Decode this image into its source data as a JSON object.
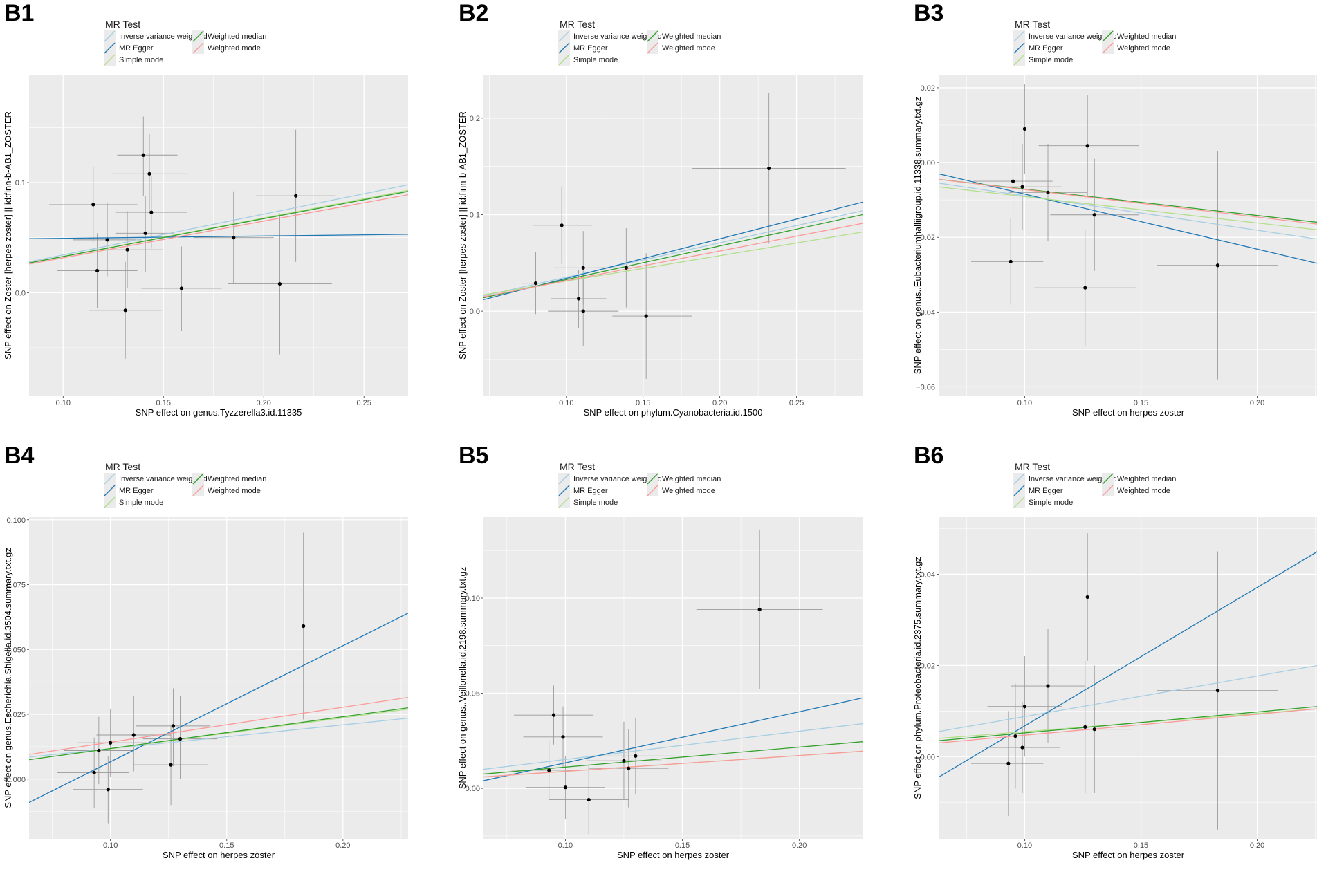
{
  "legend": {
    "title": "MR Test",
    "items": [
      {
        "key": "ivw",
        "label": "Inverse variance weighted",
        "color": "#a6cee3"
      },
      {
        "key": "egger",
        "label": "MR Egger",
        "color": "#1f78b4"
      },
      {
        "key": "simple",
        "label": "Simple mode",
        "color": "#b2df8a"
      },
      {
        "key": "wmed",
        "label": "Weighted median",
        "color": "#33a02c"
      },
      {
        "key": "wmode",
        "label": "Weighted mode",
        "color": "#fb9a99"
      }
    ]
  },
  "chart_data": [
    {
      "type": "scatter",
      "panel": "B1",
      "xlabel": "SNP effect on genus.Tyzzerella3.id.11335",
      "ylabel": "SNP effect on Zoster [herpes zoster] || id:finn-b-AB1_ZOSTER",
      "xlim": [
        0.083,
        0.272
      ],
      "ylim": [
        -0.094,
        0.198
      ],
      "xticks": [
        0.1,
        0.15,
        0.2,
        0.25
      ],
      "xticklabels": [
        "0.10",
        "0.15",
        "0.20",
        "0.25"
      ],
      "yticks": [
        0.0,
        0.1
      ],
      "yticklabels": [
        "0.0",
        "0.1"
      ],
      "points": [
        {
          "x": 0.115,
          "y": 0.08,
          "xlo": 0.093,
          "xhi": 0.137,
          "ylo": 0.046,
          "yhi": 0.114
        },
        {
          "x": 0.117,
          "y": 0.02,
          "xlo": 0.097,
          "xhi": 0.137,
          "ylo": -0.014,
          "yhi": 0.054
        },
        {
          "x": 0.122,
          "y": 0.048,
          "xlo": 0.105,
          "xhi": 0.139,
          "ylo": 0.015,
          "yhi": 0.082
        },
        {
          "x": 0.131,
          "y": -0.016,
          "xlo": 0.113,
          "xhi": 0.149,
          "ylo": -0.06,
          "yhi": 0.028
        },
        {
          "x": 0.132,
          "y": 0.039,
          "xlo": 0.114,
          "xhi": 0.15,
          "ylo": 0.004,
          "yhi": 0.074
        },
        {
          "x": 0.14,
          "y": 0.125,
          "xlo": 0.127,
          "xhi": 0.157,
          "ylo": 0.088,
          "yhi": 0.16
        },
        {
          "x": 0.141,
          "y": 0.054,
          "xlo": 0.126,
          "xhi": 0.155,
          "ylo": 0.019,
          "yhi": 0.088
        },
        {
          "x": 0.143,
          "y": 0.108,
          "xlo": 0.124,
          "xhi": 0.162,
          "ylo": 0.072,
          "yhi": 0.144
        },
        {
          "x": 0.144,
          "y": 0.073,
          "xlo": 0.126,
          "xhi": 0.162,
          "ylo": 0.04,
          "yhi": 0.106
        },
        {
          "x": 0.159,
          "y": 0.004,
          "xlo": 0.139,
          "xhi": 0.179,
          "ylo": -0.035,
          "yhi": 0.042
        },
        {
          "x": 0.185,
          "y": 0.05,
          "xlo": 0.165,
          "xhi": 0.205,
          "ylo": 0.008,
          "yhi": 0.092
        },
        {
          "x": 0.208,
          "y": 0.008,
          "xlo": 0.182,
          "xhi": 0.234,
          "ylo": -0.056,
          "yhi": 0.072
        },
        {
          "x": 0.216,
          "y": 0.088,
          "xlo": 0.196,
          "xhi": 0.236,
          "ylo": 0.028,
          "yhi": 0.148
        }
      ],
      "lines": [
        {
          "key": "ivw",
          "x": [
            0.083,
            0.272
          ],
          "y": [
            0.028,
            0.098
          ]
        },
        {
          "key": "egger",
          "x": [
            0.083,
            0.272
          ],
          "y": [
            0.049,
            0.053
          ]
        },
        {
          "key": "simple",
          "x": [
            0.083,
            0.272
          ],
          "y": [
            0.027,
            0.093
          ]
        },
        {
          "key": "wmed",
          "x": [
            0.083,
            0.272
          ],
          "y": [
            0.027,
            0.092
          ]
        },
        {
          "key": "wmode",
          "x": [
            0.083,
            0.272
          ],
          "y": [
            0.026,
            0.089
          ]
        }
      ]
    },
    {
      "type": "scatter",
      "panel": "B2",
      "xlabel": "SNP effect on phylum.Cyanobacteria.id.1500",
      "ylabel": "SNP effect on Zoster [herpes zoster] || id:finn-b-AB1_ZOSTER",
      "xlim": [
        0.046,
        0.293
      ],
      "ylim": [
        -0.088,
        0.245
      ],
      "xticks": [
        0.1,
        0.15,
        0.2,
        0.25
      ],
      "xticklabels": [
        "0.10",
        "0.15",
        "0.20",
        "0.25"
      ],
      "yticks": [
        0.0,
        0.1,
        0.2
      ],
      "yticklabels": [
        "0.0",
        "0.1",
        "0.2"
      ],
      "points": [
        {
          "x": 0.08,
          "y": 0.029,
          "xlo": 0.071,
          "xhi": 0.089,
          "ylo": -0.003,
          "yhi": 0.061
        },
        {
          "x": 0.097,
          "y": 0.089,
          "xlo": 0.078,
          "xhi": 0.117,
          "ylo": 0.049,
          "yhi": 0.129
        },
        {
          "x": 0.108,
          "y": 0.013,
          "xlo": 0.09,
          "xhi": 0.126,
          "ylo": -0.017,
          "yhi": 0.043
        },
        {
          "x": 0.111,
          "y": 0.045,
          "xlo": 0.092,
          "xhi": 0.13,
          "ylo": 0.007,
          "yhi": 0.083
        },
        {
          "x": 0.111,
          "y": 0.0,
          "xlo": 0.088,
          "xhi": 0.134,
          "ylo": -0.036,
          "yhi": 0.036
        },
        {
          "x": 0.139,
          "y": 0.045,
          "xlo": 0.12,
          "xhi": 0.158,
          "ylo": 0.004,
          "yhi": 0.086
        },
        {
          "x": 0.152,
          "y": -0.005,
          "xlo": 0.13,
          "xhi": 0.182,
          "ylo": -0.07,
          "yhi": 0.06
        },
        {
          "x": 0.232,
          "y": 0.148,
          "xlo": 0.182,
          "xhi": 0.282,
          "ylo": 0.07,
          "yhi": 0.226
        }
      ],
      "lines": [
        {
          "key": "ivw",
          "x": [
            0.046,
            0.293
          ],
          "y": [
            0.016,
            0.104
          ]
        },
        {
          "key": "egger",
          "x": [
            0.046,
            0.293
          ],
          "y": [
            0.012,
            0.113
          ]
        },
        {
          "key": "simple",
          "x": [
            0.046,
            0.293
          ],
          "y": [
            0.017,
            0.082
          ]
        },
        {
          "key": "wmed",
          "x": [
            0.046,
            0.293
          ],
          "y": [
            0.014,
            0.1
          ]
        },
        {
          "key": "wmode",
          "x": [
            0.046,
            0.293
          ],
          "y": [
            0.015,
            0.091
          ]
        }
      ]
    },
    {
      "type": "scatter",
      "panel": "B3",
      "xlabel": "SNP effect on herpes zoster",
      "ylabel": "SNP effect on genus..Eubacteriumhalliigroup.id.11338.summary.txt.gz",
      "xlim": [
        0.063,
        0.226
      ],
      "ylim": [
        -0.0625,
        0.0235
      ],
      "xticks": [
        0.1,
        0.15,
        0.2
      ],
      "xticklabels": [
        "0.10",
        "0.15",
        "0.20"
      ],
      "yticks": [
        -0.06,
        -0.04,
        -0.02,
        0.0,
        0.02
      ],
      "yticklabels": [
        "−0.06",
        "−0.04",
        "−0.02",
        "0.00",
        "0.02"
      ],
      "points": [
        {
          "x": 0.094,
          "y": -0.0265,
          "xlo": 0.077,
          "xhi": 0.108,
          "ylo": -0.038,
          "yhi": -0.015
        },
        {
          "x": 0.095,
          "y": -0.005,
          "xlo": 0.078,
          "xhi": 0.112,
          "ylo": -0.017,
          "yhi": 0.007
        },
        {
          "x": 0.099,
          "y": -0.0065,
          "xlo": 0.082,
          "xhi": 0.116,
          "ylo": -0.018,
          "yhi": 0.005
        },
        {
          "x": 0.1,
          "y": 0.009,
          "xlo": 0.083,
          "xhi": 0.122,
          "ylo": -0.003,
          "yhi": 0.021
        },
        {
          "x": 0.11,
          "y": -0.008,
          "xlo": 0.093,
          "xhi": 0.127,
          "ylo": -0.021,
          "yhi": 0.005
        },
        {
          "x": 0.126,
          "y": -0.0335,
          "xlo": 0.104,
          "xhi": 0.148,
          "ylo": -0.049,
          "yhi": -0.018
        },
        {
          "x": 0.127,
          "y": 0.0045,
          "xlo": 0.106,
          "xhi": 0.149,
          "ylo": -0.009,
          "yhi": 0.018
        },
        {
          "x": 0.13,
          "y": -0.014,
          "xlo": 0.111,
          "xhi": 0.149,
          "ylo": -0.029,
          "yhi": 0.001
        },
        {
          "x": 0.183,
          "y": -0.0275,
          "xlo": 0.157,
          "xhi": 0.209,
          "ylo": -0.058,
          "yhi": 0.003
        }
      ],
      "lines": [
        {
          "key": "ivw",
          "x": [
            0.063,
            0.226
          ],
          "y": [
            -0.0055,
            -0.0205
          ]
        },
        {
          "key": "egger",
          "x": [
            0.063,
            0.226
          ],
          "y": [
            -0.003,
            -0.027
          ]
        },
        {
          "key": "simple",
          "x": [
            0.063,
            0.226
          ],
          "y": [
            -0.0065,
            -0.018
          ]
        },
        {
          "key": "wmed",
          "x": [
            0.063,
            0.226
          ],
          "y": [
            -0.0045,
            -0.016
          ]
        },
        {
          "key": "wmode",
          "x": [
            0.063,
            0.226
          ],
          "y": [
            -0.0045,
            -0.0165
          ]
        }
      ]
    },
    {
      "type": "scatter",
      "panel": "B4",
      "xlabel": "SNP effect on herpes zoster",
      "ylabel": "SNP effect on genus.Escherichia.Shigella.id.3504.summary.txt.gz",
      "xlim": [
        0.065,
        0.228
      ],
      "ylim": [
        -0.023,
        0.101
      ],
      "xticks": [
        0.1,
        0.15,
        0.2
      ],
      "xticklabels": [
        "0.10",
        "0.15",
        "0.20"
      ],
      "yticks": [
        0.0,
        0.025,
        0.05,
        0.075,
        0.1
      ],
      "yticklabels": [
        "0.000",
        "0.025",
        "0.050",
        "0.075",
        "0.100"
      ],
      "points": [
        {
          "x": 0.093,
          "y": 0.0025,
          "xlo": 0.077,
          "xhi": 0.108,
          "ylo": -0.011,
          "yhi": 0.016
        },
        {
          "x": 0.095,
          "y": 0.011,
          "xlo": 0.08,
          "xhi": 0.11,
          "ylo": -0.002,
          "yhi": 0.024
        },
        {
          "x": 0.099,
          "y": -0.004,
          "xlo": 0.084,
          "xhi": 0.114,
          "ylo": -0.017,
          "yhi": 0.009
        },
        {
          "x": 0.1,
          "y": 0.014,
          "xlo": 0.086,
          "xhi": 0.116,
          "ylo": 0.001,
          "yhi": 0.027
        },
        {
          "x": 0.11,
          "y": 0.017,
          "xlo": 0.094,
          "xhi": 0.126,
          "ylo": 0.003,
          "yhi": 0.032
        },
        {
          "x": 0.126,
          "y": 0.0055,
          "xlo": 0.11,
          "xhi": 0.142,
          "ylo": -0.01,
          "yhi": 0.021
        },
        {
          "x": 0.127,
          "y": 0.0205,
          "xlo": 0.111,
          "xhi": 0.143,
          "ylo": 0.005,
          "yhi": 0.035
        },
        {
          "x": 0.13,
          "y": 0.0155,
          "xlo": 0.114,
          "xhi": 0.146,
          "ylo": 0.0,
          "yhi": 0.032
        },
        {
          "x": 0.183,
          "y": 0.059,
          "xlo": 0.161,
          "xhi": 0.207,
          "ylo": 0.023,
          "yhi": 0.095
        }
      ],
      "lines": [
        {
          "key": "ivw",
          "x": [
            0.065,
            0.228
          ],
          "y": [
            0.0085,
            0.0235
          ]
        },
        {
          "key": "egger",
          "x": [
            0.065,
            0.228
          ],
          "y": [
            -0.009,
            0.064
          ]
        },
        {
          "key": "simple",
          "x": [
            0.065,
            0.228
          ],
          "y": [
            0.0075,
            0.027
          ]
        },
        {
          "key": "wmed",
          "x": [
            0.065,
            0.228
          ],
          "y": [
            0.0075,
            0.0275
          ]
        },
        {
          "key": "wmode",
          "x": [
            0.065,
            0.228
          ],
          "y": [
            0.0095,
            0.0315
          ]
        }
      ]
    },
    {
      "type": "scatter",
      "panel": "B5",
      "xlabel": "SNP effect on herpes zoster",
      "ylabel": "SNP effect on genus..Veillonella.id.2198.summary.txt.gz",
      "xlim": [
        0.065,
        0.227
      ],
      "ylim": [
        -0.0265,
        0.1425
      ],
      "xticks": [
        0.1,
        0.15,
        0.2
      ],
      "xticklabels": [
        "0.10",
        "0.15",
        "0.20"
      ],
      "yticks": [
        0.0,
        0.05,
        0.1
      ],
      "yticklabels": [
        "0.00",
        "0.05",
        "0.10"
      ],
      "points": [
        {
          "x": 0.093,
          "y": 0.0095,
          "xlo": 0.077,
          "xhi": 0.108,
          "ylo": -0.006,
          "yhi": 0.025
        },
        {
          "x": 0.095,
          "y": 0.0385,
          "xlo": 0.078,
          "xhi": 0.112,
          "ylo": 0.023,
          "yhi": 0.054
        },
        {
          "x": 0.099,
          "y": 0.027,
          "xlo": 0.082,
          "xhi": 0.116,
          "ylo": 0.011,
          "yhi": 0.043
        },
        {
          "x": 0.1,
          "y": 0.0005,
          "xlo": 0.083,
          "xhi": 0.117,
          "ylo": -0.016,
          "yhi": 0.017
        },
        {
          "x": 0.11,
          "y": -0.006,
          "xlo": 0.093,
          "xhi": 0.127,
          "ylo": -0.024,
          "yhi": 0.012
        },
        {
          "x": 0.125,
          "y": 0.0145,
          "xlo": 0.109,
          "xhi": 0.141,
          "ylo": -0.006,
          "yhi": 0.035
        },
        {
          "x": 0.127,
          "y": 0.0105,
          "xlo": 0.11,
          "xhi": 0.144,
          "ylo": -0.01,
          "yhi": 0.031
        },
        {
          "x": 0.13,
          "y": 0.017,
          "xlo": 0.113,
          "xhi": 0.147,
          "ylo": -0.003,
          "yhi": 0.037
        },
        {
          "x": 0.183,
          "y": 0.094,
          "xlo": 0.156,
          "xhi": 0.21,
          "ylo": 0.052,
          "yhi": 0.136
        }
      ],
      "lines": [
        {
          "key": "ivw",
          "x": [
            0.065,
            0.227
          ],
          "y": [
            0.01,
            0.034
          ]
        },
        {
          "key": "egger",
          "x": [
            0.065,
            0.227
          ],
          "y": [
            0.004,
            0.0475
          ]
        },
        {
          "key": "simple",
          "x": [
            0.065,
            0.227
          ],
          "y": [
            0.006,
            0.0195
          ]
        },
        {
          "key": "wmed",
          "x": [
            0.065,
            0.227
          ],
          "y": [
            0.0075,
            0.0245
          ]
        },
        {
          "key": "wmode",
          "x": [
            0.065,
            0.227
          ],
          "y": [
            0.006,
            0.0195
          ]
        }
      ]
    },
    {
      "type": "scatter",
      "panel": "B6",
      "xlabel": "SNP effect on herpes zoster",
      "ylabel": "SNP effect on phylum.Proteobacteria.id.2375.summary.txt.gz",
      "xlim": [
        0.063,
        0.226
      ],
      "ylim": [
        -0.018,
        0.0525
      ],
      "xticks": [
        0.1,
        0.15,
        0.2
      ],
      "xticklabels": [
        "0.10",
        "0.15",
        "0.20"
      ],
      "yticks": [
        0.0,
        0.02,
        0.04
      ],
      "yticklabels": [
        "0.00",
        "0.02",
        "0.04"
      ],
      "points": [
        {
          "x": 0.093,
          "y": -0.0015,
          "xlo": 0.077,
          "xhi": 0.108,
          "ylo": -0.013,
          "yhi": 0.01
        },
        {
          "x": 0.096,
          "y": 0.0045,
          "xlo": 0.08,
          "xhi": 0.112,
          "ylo": -0.007,
          "yhi": 0.016
        },
        {
          "x": 0.099,
          "y": 0.002,
          "xlo": 0.083,
          "xhi": 0.115,
          "ylo": -0.008,
          "yhi": 0.012
        },
        {
          "x": 0.1,
          "y": 0.011,
          "xlo": 0.084,
          "xhi": 0.116,
          "ylo": 0.0,
          "yhi": 0.022
        },
        {
          "x": 0.11,
          "y": 0.0155,
          "xlo": 0.094,
          "xhi": 0.126,
          "ylo": 0.003,
          "yhi": 0.028
        },
        {
          "x": 0.126,
          "y": 0.0065,
          "xlo": 0.11,
          "xhi": 0.142,
          "ylo": -0.008,
          "yhi": 0.021
        },
        {
          "x": 0.127,
          "y": 0.035,
          "xlo": 0.11,
          "xhi": 0.144,
          "ylo": 0.021,
          "yhi": 0.049
        },
        {
          "x": 0.13,
          "y": 0.006,
          "xlo": 0.114,
          "xhi": 0.146,
          "ylo": -0.008,
          "yhi": 0.02
        },
        {
          "x": 0.183,
          "y": 0.0145,
          "xlo": 0.157,
          "xhi": 0.209,
          "ylo": -0.016,
          "yhi": 0.045
        }
      ],
      "lines": [
        {
          "key": "ivw",
          "x": [
            0.063,
            0.226
          ],
          "y": [
            0.0055,
            0.02
          ]
        },
        {
          "key": "egger",
          "x": [
            0.063,
            0.226
          ],
          "y": [
            -0.0045,
            0.045
          ]
        },
        {
          "key": "simple",
          "x": [
            0.063,
            0.226
          ],
          "y": [
            0.004,
            0.0105
          ]
        },
        {
          "key": "wmed",
          "x": [
            0.063,
            0.226
          ],
          "y": [
            0.0035,
            0.011
          ]
        },
        {
          "key": "wmode",
          "x": [
            0.063,
            0.226
          ],
          "y": [
            0.003,
            0.0105
          ]
        }
      ]
    }
  ]
}
